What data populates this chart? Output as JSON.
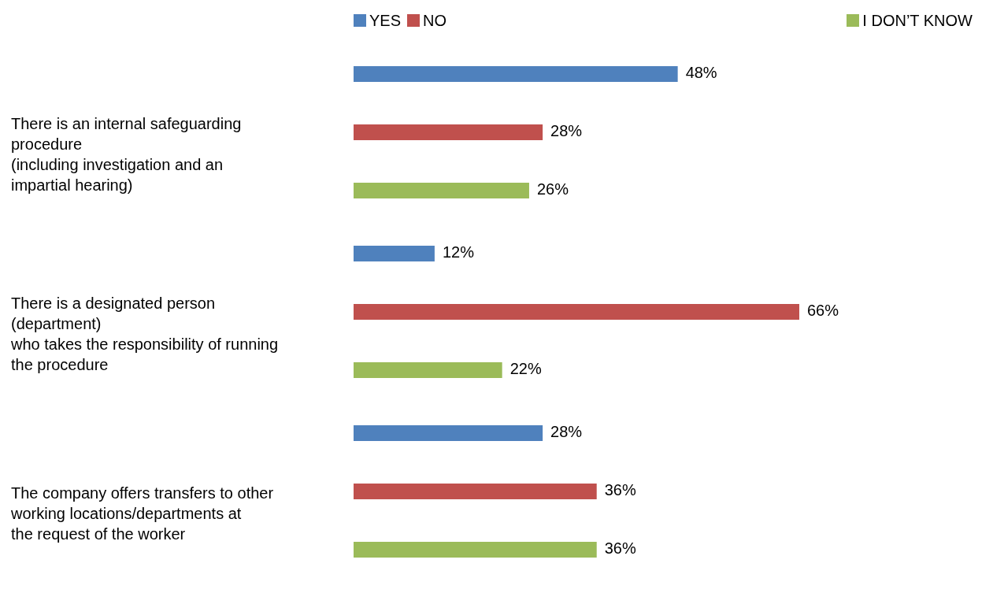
{
  "chart_data": {
    "type": "bar",
    "orientation": "horizontal",
    "legend": "top",
    "xlim": [
      0,
      66
    ],
    "categories": [
      "There is an internal safeguarding\nprocedure\n(including investigation and an\nimpartial hearing)",
      "There is a designated person\n(department)\nwho takes the responsibility of running\nthe procedure",
      "The company offers transfers to other\nworking locations/departments at\nthe request of the worker"
    ],
    "series": [
      {
        "name": "YES",
        "color": "#4f81bd",
        "values": [
          48,
          12,
          28
        ],
        "value_labels": [
          "48%",
          "12%",
          "28%"
        ]
      },
      {
        "name": "NO",
        "color": "#c0504d",
        "values": [
          28,
          66,
          36
        ],
        "value_labels": [
          "28%",
          "66%",
          "36%"
        ]
      },
      {
        "name": "I DON’T KNOW",
        "color": "#9bbb59",
        "values": [
          26,
          22,
          36
        ],
        "value_labels": [
          "26%",
          "22%",
          "36%"
        ]
      }
    ]
  }
}
